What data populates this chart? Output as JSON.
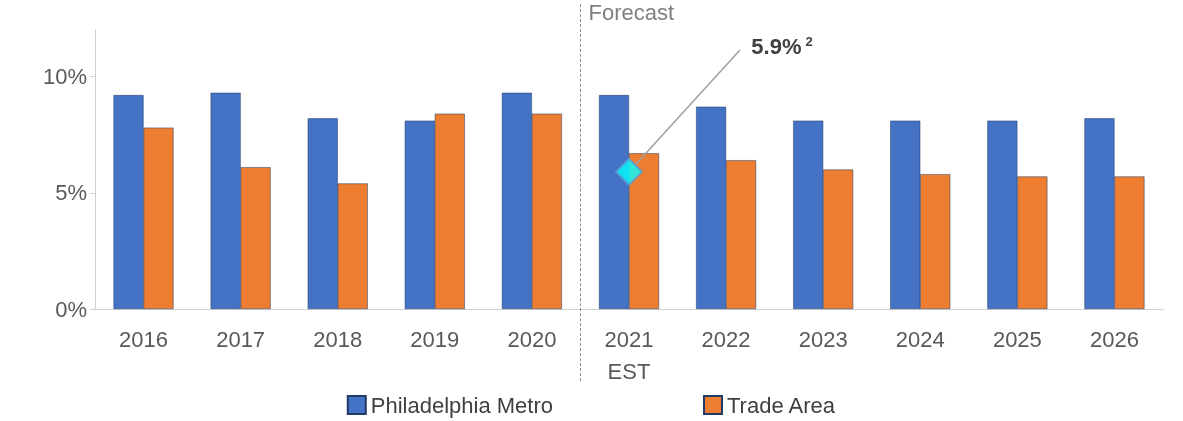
{
  "chart_data": {
    "type": "bar",
    "categories": [
      "2016",
      "2017",
      "2018",
      "2019",
      "2020",
      "2021\nEST",
      "2022",
      "2023",
      "2024",
      "2025",
      "2026"
    ],
    "series": [
      {
        "name": "Philadelphia Metro",
        "color": "#4472c4",
        "values": [
          9.2,
          9.3,
          8.2,
          8.1,
          9.3,
          9.2,
          8.7,
          8.1,
          8.1,
          8.1,
          8.2
        ]
      },
      {
        "name": "Trade Area",
        "color": "#ed7d31",
        "values": [
          7.8,
          6.1,
          5.4,
          8.4,
          8.4,
          6.7,
          6.4,
          6.0,
          5.8,
          5.7,
          5.7
        ]
      },
      {
        "type": "scatter",
        "marker": "diamond",
        "color": "#00ffff",
        "x": [
          "2021\nEST"
        ],
        "values": [
          5.9
        ]
      }
    ],
    "ylim": [
      0,
      12
    ],
    "yticks": [
      {
        "value": 0,
        "label": "0%"
      },
      {
        "value": 5,
        "label": "5%"
      },
      {
        "value": 10,
        "label": "10%"
      }
    ],
    "grid": false,
    "legend": "bottom",
    "annotations": [
      "Forecast",
      {
        "text": "5.9%$^{2}$",
        "x": "2021\nEST",
        "y": 5.9
      }
    ]
  }
}
